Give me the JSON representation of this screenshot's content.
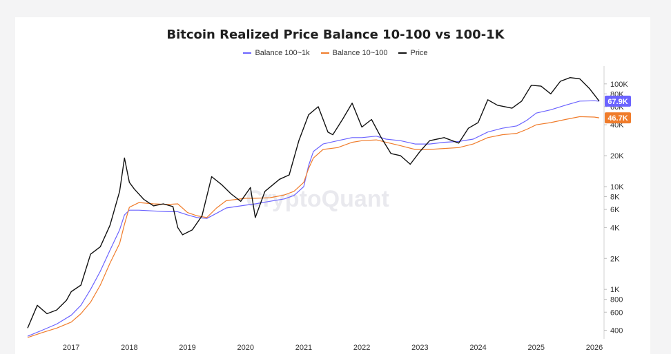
{
  "title": "Bitcoin Realized Price Balance 10-100 vs 100-1K",
  "watermark": "CryptoQuant",
  "legend": [
    {
      "label": "Balance 100~1k",
      "color": "#6b63ff"
    },
    {
      "label": "Balance 10~100",
      "color": "#f07c2b"
    },
    {
      "label": "Price",
      "color": "#111111"
    }
  ],
  "chart_data": {
    "type": "line",
    "title": "Bitcoin Realized Price Balance 10-100 vs 100-1K",
    "y_scale": "log",
    "y_ticks": [
      {
        "value": 400,
        "label": "400"
      },
      {
        "value": 600,
        "label": "600"
      },
      {
        "value": 800,
        "label": "800"
      },
      {
        "value": 1000,
        "label": "1K"
      },
      {
        "value": 2000,
        "label": "2K"
      },
      {
        "value": 4000,
        "label": "4K"
      },
      {
        "value": 6000,
        "label": "6K"
      },
      {
        "value": 8000,
        "label": "8K"
      },
      {
        "value": 10000,
        "label": "10K"
      },
      {
        "value": 20000,
        "label": "20K"
      },
      {
        "value": 40000,
        "label": "40K"
      },
      {
        "value": 60000,
        "label": "60K"
      },
      {
        "value": 80000,
        "label": "80K"
      },
      {
        "value": 100000,
        "label": "100K"
      }
    ],
    "x_ticks": [
      "2017",
      "2018",
      "2019",
      "2020",
      "2021",
      "2022",
      "2023",
      "2024",
      "2025",
      "2026"
    ],
    "x_range": [
      "2016-04",
      "2026-03"
    ],
    "y_range": [
      330,
      140000
    ],
    "series": [
      {
        "name": "Balance 100~1k",
        "color": "#6b63ff",
        "last_value_label": "67.9K",
        "points": [
          [
            "2016-04",
            350
          ],
          [
            "2016-07",
            400
          ],
          [
            "2016-10",
            460
          ],
          [
            "2017-01",
            560
          ],
          [
            "2017-03",
            700
          ],
          [
            "2017-05",
            1000
          ],
          [
            "2017-07",
            1500
          ],
          [
            "2017-09",
            2400
          ],
          [
            "2017-11",
            3800
          ],
          [
            "2017-12",
            5300
          ],
          [
            "2018-01",
            5900
          ],
          [
            "2018-03",
            5900
          ],
          [
            "2018-06",
            5800
          ],
          [
            "2018-09",
            5700
          ],
          [
            "2018-11",
            5700
          ],
          [
            "2019-01",
            5300
          ],
          [
            "2019-03",
            5000
          ],
          [
            "2019-05",
            4900
          ],
          [
            "2019-07",
            5500
          ],
          [
            "2019-09",
            6200
          ],
          [
            "2020-01",
            6600
          ],
          [
            "2020-03",
            6800
          ],
          [
            "2020-06",
            7200
          ],
          [
            "2020-09",
            7600
          ],
          [
            "2020-11",
            8200
          ],
          [
            "2021-01",
            10000
          ],
          [
            "2021-02",
            16000
          ],
          [
            "2021-03",
            22000
          ],
          [
            "2021-05",
            26000
          ],
          [
            "2021-08",
            28000
          ],
          [
            "2021-11",
            30000
          ],
          [
            "2022-01",
            30000
          ],
          [
            "2022-04",
            31000
          ],
          [
            "2022-06",
            29000
          ],
          [
            "2022-09",
            28000
          ],
          [
            "2022-12",
            26000
          ],
          [
            "2023-03",
            26000
          ],
          [
            "2023-06",
            27000
          ],
          [
            "2023-09",
            27500
          ],
          [
            "2023-12",
            29000
          ],
          [
            "2024-03",
            34000
          ],
          [
            "2024-06",
            37000
          ],
          [
            "2024-09",
            39000
          ],
          [
            "2024-11",
            44000
          ],
          [
            "2025-01",
            52000
          ],
          [
            "2025-04",
            56000
          ],
          [
            "2025-07",
            62000
          ],
          [
            "2025-10",
            68000
          ],
          [
            "2026-01",
            68500
          ],
          [
            "2026-02",
            67900
          ]
        ]
      },
      {
        "name": "Balance 10~100",
        "color": "#f07c2b",
        "last_value_label": "46.7K",
        "points": [
          [
            "2016-04",
            340
          ],
          [
            "2016-07",
            380
          ],
          [
            "2016-10",
            420
          ],
          [
            "2017-01",
            480
          ],
          [
            "2017-03",
            580
          ],
          [
            "2017-05",
            750
          ],
          [
            "2017-07",
            1100
          ],
          [
            "2017-09",
            1800
          ],
          [
            "2017-11",
            2800
          ],
          [
            "2017-12",
            4300
          ],
          [
            "2018-01",
            6300
          ],
          [
            "2018-03",
            7000
          ],
          [
            "2018-06",
            6800
          ],
          [
            "2018-09",
            6700
          ],
          [
            "2018-11",
            6800
          ],
          [
            "2019-01",
            5600
          ],
          [
            "2019-03",
            5200
          ],
          [
            "2019-05",
            5000
          ],
          [
            "2019-07",
            6200
          ],
          [
            "2019-09",
            7300
          ],
          [
            "2020-01",
            7700
          ],
          [
            "2020-03",
            7700
          ],
          [
            "2020-06",
            7800
          ],
          [
            "2020-09",
            8300
          ],
          [
            "2020-11",
            9000
          ],
          [
            "2021-01",
            11000
          ],
          [
            "2021-02",
            15000
          ],
          [
            "2021-03",
            19000
          ],
          [
            "2021-05",
            23000
          ],
          [
            "2021-08",
            24000
          ],
          [
            "2021-11",
            27000
          ],
          [
            "2022-01",
            28000
          ],
          [
            "2022-04",
            28500
          ],
          [
            "2022-06",
            27000
          ],
          [
            "2022-09",
            25000
          ],
          [
            "2022-12",
            23000
          ],
          [
            "2023-03",
            23000
          ],
          [
            "2023-06",
            23500
          ],
          [
            "2023-09",
            24000
          ],
          [
            "2023-12",
            26000
          ],
          [
            "2024-03",
            30000
          ],
          [
            "2024-06",
            32000
          ],
          [
            "2024-09",
            33000
          ],
          [
            "2024-11",
            36000
          ],
          [
            "2025-01",
            40000
          ],
          [
            "2025-04",
            42000
          ],
          [
            "2025-07",
            45000
          ],
          [
            "2025-10",
            48000
          ],
          [
            "2026-01",
            47500
          ],
          [
            "2026-02",
            46700
          ]
        ]
      },
      {
        "name": "Price",
        "color": "#111111",
        "points": [
          [
            "2016-04",
            420
          ],
          [
            "2016-06",
            700
          ],
          [
            "2016-08",
            580
          ],
          [
            "2016-10",
            630
          ],
          [
            "2016-12",
            780
          ],
          [
            "2017-01",
            950
          ],
          [
            "2017-03",
            1100
          ],
          [
            "2017-05",
            2200
          ],
          [
            "2017-07",
            2600
          ],
          [
            "2017-09",
            4200
          ],
          [
            "2017-11",
            9000
          ],
          [
            "2017-12",
            19000
          ],
          [
            "2018-01",
            11000
          ],
          [
            "2018-02",
            9500
          ],
          [
            "2018-04",
            7500
          ],
          [
            "2018-06",
            6500
          ],
          [
            "2018-08",
            6800
          ],
          [
            "2018-10",
            6400
          ],
          [
            "2018-11",
            4000
          ],
          [
            "2018-12",
            3400
          ],
          [
            "2019-02",
            3800
          ],
          [
            "2019-04",
            5200
          ],
          [
            "2019-06",
            12500
          ],
          [
            "2019-08",
            10500
          ],
          [
            "2019-10",
            8500
          ],
          [
            "2019-12",
            7200
          ],
          [
            "2020-02",
            9800
          ],
          [
            "2020-03",
            5000
          ],
          [
            "2020-05",
            9000
          ],
          [
            "2020-08",
            11800
          ],
          [
            "2020-10",
            13000
          ],
          [
            "2020-12",
            28000
          ],
          [
            "2021-02",
            50000
          ],
          [
            "2021-04",
            60000
          ],
          [
            "2021-06",
            34000
          ],
          [
            "2021-07",
            32000
          ],
          [
            "2021-09",
            45000
          ],
          [
            "2021-11",
            65000
          ],
          [
            "2022-01",
            38000
          ],
          [
            "2022-03",
            45000
          ],
          [
            "2022-05",
            30000
          ],
          [
            "2022-07",
            21000
          ],
          [
            "2022-09",
            20000
          ],
          [
            "2022-11",
            16500
          ],
          [
            "2023-01",
            22000
          ],
          [
            "2023-03",
            28000
          ],
          [
            "2023-06",
            30000
          ],
          [
            "2023-09",
            26500
          ],
          [
            "2023-11",
            37000
          ],
          [
            "2024-01",
            42000
          ],
          [
            "2024-03",
            70000
          ],
          [
            "2024-05",
            62000
          ],
          [
            "2024-08",
            58000
          ],
          [
            "2024-10",
            68000
          ],
          [
            "2024-12",
            97000
          ],
          [
            "2025-02",
            95000
          ],
          [
            "2025-04",
            80000
          ],
          [
            "2025-06",
            106000
          ],
          [
            "2025-08",
            115000
          ],
          [
            "2025-10",
            112000
          ],
          [
            "2025-12",
            90000
          ],
          [
            "2026-02",
            68000
          ]
        ]
      }
    ]
  }
}
